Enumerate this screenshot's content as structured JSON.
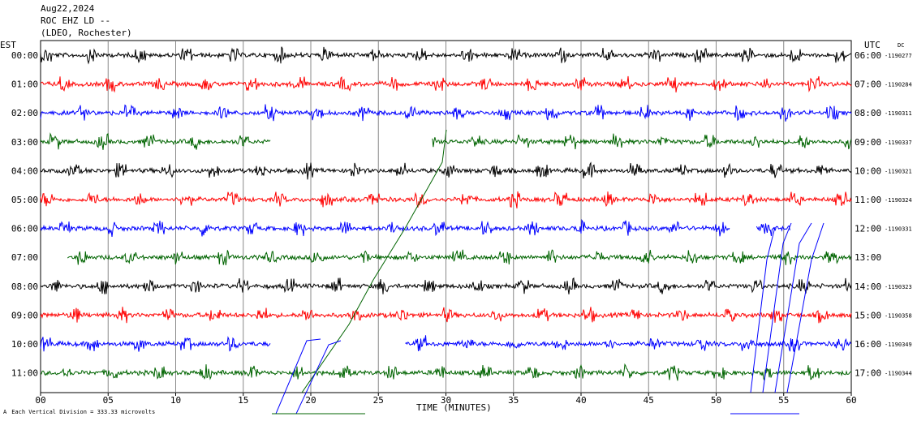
{
  "header": {
    "date": "Aug22,2024",
    "station": "ROC EHZ LD --",
    "network": "(LDEO, Rochester)"
  },
  "left_zone": "EST",
  "right_zone": "UTC",
  "dc_label": "DC",
  "footer_note": "Each Vertical Division =  333.33 microvolts",
  "colors": {
    "black": "#000000",
    "red": "#ff0000",
    "blue": "#0000ff",
    "green": "#006400",
    "grid": "#888888"
  },
  "chart_data": {
    "type": "line",
    "xlabel": "TIME (MINUTES)",
    "xlim": [
      0,
      60
    ],
    "x_ticks": [
      "00",
      "05",
      "10",
      "15",
      "20",
      "25",
      "30",
      "35",
      "40",
      "45",
      "50",
      "55",
      "60"
    ],
    "traces": [
      {
        "left": "00:00",
        "right": "06:00",
        "dc": "-1190277",
        "color": "black",
        "start": 0,
        "end": 60
      },
      {
        "left": "01:00",
        "right": "07:00",
        "dc": "-1190284",
        "color": "red",
        "start": 0,
        "end": 60
      },
      {
        "left": "02:00",
        "right": "08:00",
        "dc": "-1190311",
        "color": "blue",
        "start": 0,
        "end": 60
      },
      {
        "left": "03:00",
        "right": "09:00",
        "dc": "-1190337",
        "color": "green",
        "start": 0,
        "end": 17,
        "start2": 29,
        "end2": 60
      },
      {
        "left": "04:00",
        "right": "10:00",
        "dc": "-1190321",
        "color": "black",
        "start": 0,
        "end": 60
      },
      {
        "left": "05:00",
        "right": "11:00",
        "dc": "-1190324",
        "color": "red",
        "start": 0,
        "end": 60
      },
      {
        "left": "06:00",
        "right": "12:00",
        "dc": "-1190331",
        "color": "blue",
        "start": 0,
        "end": 51,
        "start2": 53,
        "end2": 55.5
      },
      {
        "left": "07:00",
        "right": "13:00",
        "dc": "",
        "color": "green",
        "start": 2,
        "end": 60
      },
      {
        "left": "08:00",
        "right": "14:00",
        "dc": "-1190323",
        "color": "black",
        "start": 0,
        "end": 60
      },
      {
        "left": "09:00",
        "right": "15:00",
        "dc": "-1190358",
        "color": "red",
        "start": 0,
        "end": 60
      },
      {
        "left": "10:00",
        "right": "16:00",
        "dc": "-1190349",
        "color": "blue",
        "start": 0,
        "end": 17,
        "start2": 27,
        "end2": 60
      },
      {
        "left": "11:00",
        "right": "17:00",
        "dc": "-1190344",
        "color": "green",
        "start": 0,
        "end": 60
      }
    ]
  }
}
